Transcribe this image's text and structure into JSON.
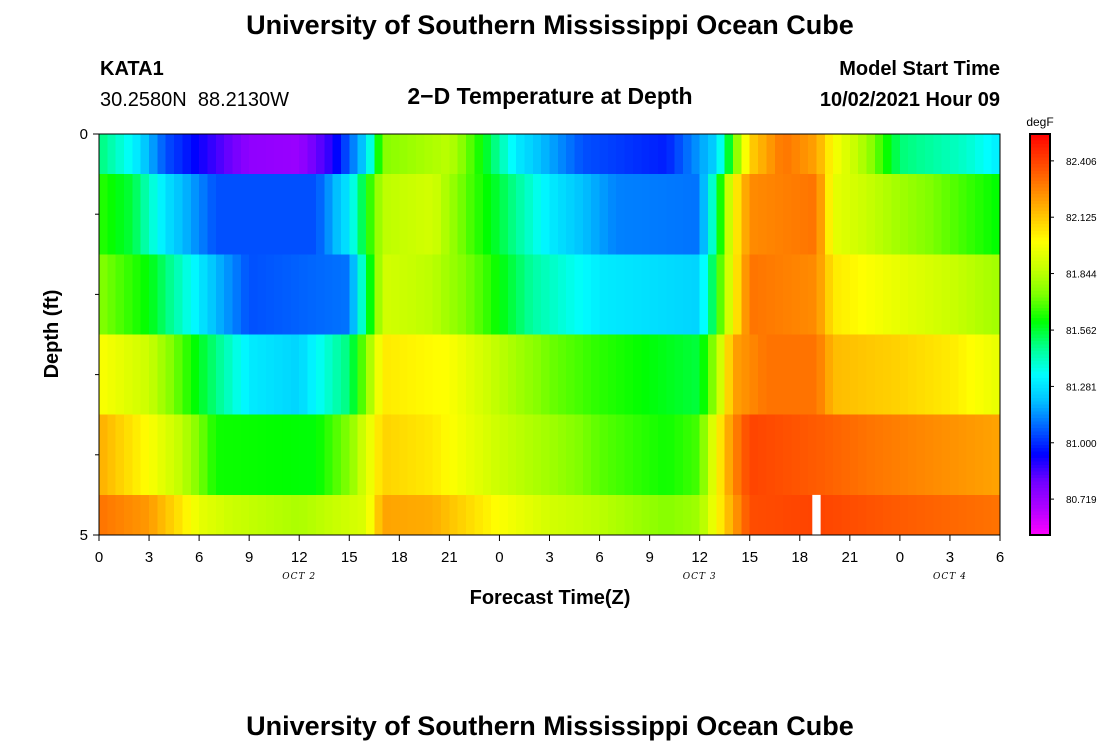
{
  "header": {
    "title": "University of Southern Mississippi Ocean Cube",
    "station_id": "KATA1",
    "coordinates": "30.2580N  88.2130W",
    "subtitle": "2−D Temperature at Depth",
    "model_label": "Model Start Time",
    "model_time": "10/02/2021 Hour 09"
  },
  "footer": {
    "title": "University of Southern Mississippi Ocean Cube"
  },
  "chart_data": {
    "type": "heatmap",
    "title": "2−D Temperature at Depth",
    "xlabel": "Forecast Time(Z)",
    "ylabel": "Depth (ft)",
    "xlim": [
      0,
      54
    ],
    "ylim": [
      0,
      5
    ],
    "x_tick_values": [
      0,
      3,
      6,
      9,
      12,
      15,
      18,
      21,
      24,
      27,
      30,
      33,
      36,
      39,
      42,
      45,
      48,
      51,
      54
    ],
    "x_tick_labels": [
      "0",
      "3",
      "6",
      "9",
      "12",
      "15",
      "18",
      "21",
      "0",
      "3",
      "6",
      "9",
      "12",
      "15",
      "18",
      "21",
      "0",
      "3",
      "6"
    ],
    "date_labels": [
      {
        "text": "OCT 2",
        "x": 12
      },
      {
        "text": "OCT 3",
        "x": 36
      },
      {
        "text": "OCT 4",
        "x": 51
      }
    ],
    "y_tick_labels": [
      {
        "text": "0",
        "value": 0
      },
      {
        "text": "5",
        "value": 5
      }
    ],
    "y_minor_ticks": [
      1,
      2,
      3,
      4
    ],
    "time_step_hours": 0.5,
    "depth_bands": [
      0,
      0.5,
      1.5,
      2.5,
      3.5,
      4.5,
      5.0
    ],
    "profiles": [
      {
        "band": 0,
        "knots": [
          [
            0,
            81.5
          ],
          [
            2,
            81.33
          ],
          [
            4,
            81.05
          ],
          [
            9,
            80.74
          ],
          [
            12,
            80.72
          ],
          [
            14,
            80.9
          ],
          [
            16,
            81.25
          ],
          [
            17,
            81.75
          ],
          [
            21,
            81.85
          ],
          [
            23,
            81.6
          ],
          [
            25,
            81.3
          ],
          [
            29,
            81.05
          ],
          [
            34,
            80.98
          ],
          [
            37,
            81.25
          ],
          [
            39,
            82.1
          ],
          [
            41,
            82.3
          ],
          [
            43,
            82.2
          ],
          [
            44,
            82.0
          ],
          [
            46,
            81.8
          ],
          [
            48,
            81.5
          ],
          [
            52,
            81.4
          ],
          [
            54,
            81.3
          ]
        ]
      },
      {
        "band": 1,
        "knots": [
          [
            0,
            81.65
          ],
          [
            2,
            81.55
          ],
          [
            4,
            81.28
          ],
          [
            7,
            81.05
          ],
          [
            13,
            81.05
          ],
          [
            15,
            81.3
          ],
          [
            16,
            81.6
          ],
          [
            17,
            81.85
          ],
          [
            20,
            81.9
          ],
          [
            22,
            81.7
          ],
          [
            24,
            81.55
          ],
          [
            27,
            81.3
          ],
          [
            31,
            81.12
          ],
          [
            36,
            81.1
          ],
          [
            37,
            81.5
          ],
          [
            38,
            82.0
          ],
          [
            39,
            82.25
          ],
          [
            43,
            82.3
          ],
          [
            44,
            81.95
          ],
          [
            48,
            81.8
          ],
          [
            51,
            81.7
          ],
          [
            54,
            81.6
          ]
        ]
      },
      {
        "band": 2,
        "knots": [
          [
            0,
            81.75
          ],
          [
            3,
            81.6
          ],
          [
            5,
            81.4
          ],
          [
            7,
            81.2
          ],
          [
            9,
            81.05
          ],
          [
            15,
            81.1
          ],
          [
            16,
            81.5
          ],
          [
            17,
            81.9
          ],
          [
            20,
            81.85
          ],
          [
            23,
            81.68
          ],
          [
            26,
            81.45
          ],
          [
            30,
            81.3
          ],
          [
            36,
            81.25
          ],
          [
            37,
            81.6
          ],
          [
            38,
            82.0
          ],
          [
            39,
            82.3
          ],
          [
            43,
            82.25
          ],
          [
            44,
            82.05
          ],
          [
            48,
            81.95
          ],
          [
            51,
            81.88
          ],
          [
            54,
            81.8
          ]
        ]
      },
      {
        "band": 3,
        "knots": [
          [
            0,
            82.0
          ],
          [
            3,
            81.88
          ],
          [
            6,
            81.58
          ],
          [
            9,
            81.3
          ],
          [
            12,
            81.25
          ],
          [
            14,
            81.42
          ],
          [
            15,
            81.5
          ],
          [
            16,
            81.75
          ],
          [
            17,
            82.05
          ],
          [
            21,
            82.0
          ],
          [
            24,
            81.85
          ],
          [
            27,
            81.72
          ],
          [
            30,
            81.65
          ],
          [
            36,
            81.55
          ],
          [
            37,
            81.8
          ],
          [
            38,
            82.2
          ],
          [
            40,
            82.3
          ],
          [
            43,
            82.3
          ],
          [
            44,
            82.15
          ],
          [
            48,
            82.1
          ],
          [
            51,
            82.05
          ],
          [
            54,
            81.95
          ]
        ]
      },
      {
        "band": 4,
        "knots": [
          [
            0,
            82.18
          ],
          [
            3,
            82.0
          ],
          [
            5,
            81.85
          ],
          [
            7,
            81.62
          ],
          [
            13,
            81.6
          ],
          [
            15,
            81.75
          ],
          [
            16,
            81.92
          ],
          [
            17,
            82.1
          ],
          [
            20,
            82.05
          ],
          [
            24,
            81.88
          ],
          [
            27,
            81.8
          ],
          [
            30,
            81.7
          ],
          [
            34,
            81.62
          ],
          [
            36,
            81.68
          ],
          [
            37,
            82.0
          ],
          [
            38,
            82.25
          ],
          [
            39,
            82.4
          ],
          [
            43,
            82.35
          ],
          [
            46,
            82.3
          ],
          [
            50,
            82.25
          ],
          [
            54,
            82.2
          ]
        ]
      },
      {
        "band": 5,
        "knots": [
          [
            0,
            82.3
          ],
          [
            3,
            82.22
          ],
          [
            5,
            82.05
          ],
          [
            6,
            81.95
          ],
          [
            8,
            81.88
          ],
          [
            12,
            81.82
          ],
          [
            16,
            81.92
          ],
          [
            17,
            82.2
          ],
          [
            20,
            82.18
          ],
          [
            24,
            82.0
          ],
          [
            27,
            81.9
          ],
          [
            30,
            81.85
          ],
          [
            34,
            81.75
          ],
          [
            36,
            81.8
          ],
          [
            37,
            82.0
          ],
          [
            38,
            82.2
          ],
          [
            39,
            82.38
          ],
          [
            43,
            82.4
          ],
          [
            48,
            82.35
          ],
          [
            54,
            82.3
          ]
        ]
      }
    ],
    "missing_cells": [
      {
        "band": 5,
        "x_start": 42.75,
        "x_end": 43.25
      }
    ],
    "colorbar": {
      "unit": "degF",
      "min": 80.54,
      "max": 82.54,
      "tick_values": [
        80.719,
        81.0,
        81.281,
        81.562,
        81.844,
        82.125,
        82.406
      ],
      "tick_labels": [
        "80.719",
        "81.000",
        "81.281",
        "81.562",
        "81.844",
        "82.125",
        "82.406"
      ],
      "colors": [
        "#ff00ff",
        "#b000ff",
        "#7000ff",
        "#0000ff",
        "#0060ff",
        "#00c0ff",
        "#00ffff",
        "#00ff90",
        "#00ff00",
        "#80ff00",
        "#c8ff00",
        "#ffff00",
        "#ffc000",
        "#ff8000",
        "#ff4000",
        "#ff0000"
      ]
    }
  }
}
